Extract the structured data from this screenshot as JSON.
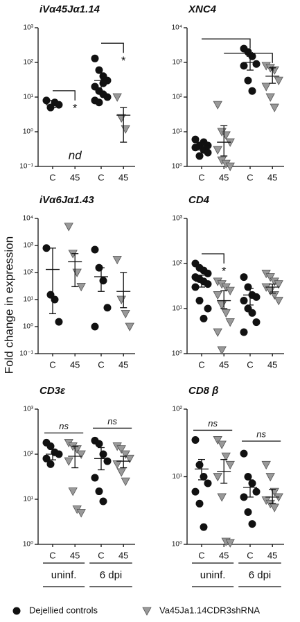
{
  "y_label": "Fold change in expression",
  "conditions": [
    "uninf.",
    "6 dpi"
  ],
  "legend": [
    {
      "name": "Dejellied controls",
      "color": "#111111",
      "marker": "circle"
    },
    {
      "name": "Va45Ja1.14CDR3shRNA",
      "color": "#999999",
      "marker": "triangle"
    }
  ],
  "chart_data": [
    {
      "type": "scatter",
      "title": "iVα45Jα1.14",
      "log": true,
      "categories": [
        "C",
        "45",
        "C",
        "45"
      ],
      "ylim": [
        0.1,
        1000
      ],
      "yticks": [
        {
          "value": 0.1,
          "label": "10⁻¹"
        },
        {
          "value": 1,
          "label": "10⁰"
        },
        {
          "value": 10,
          "label": "10¹"
        },
        {
          "value": 100,
          "label": "10²"
        },
        {
          "value": 1000,
          "label": "10³"
        }
      ],
      "groups": [
        [
          8,
          5,
          7,
          6
        ],
        [],
        [
          130,
          60,
          40,
          30,
          20,
          15,
          12,
          10,
          8,
          7,
          25
        ],
        [
          10,
          2.5,
          1.2
        ]
      ],
      "means": [
        6,
        null,
        30,
        3
      ],
      "error_low": [
        5,
        null,
        15,
        0.5
      ],
      "error_high": [
        8,
        null,
        50,
        5
      ],
      "annotations": [
        {
          "text": "*",
          "from": 0,
          "to": 1,
          "style": "drop"
        },
        {
          "text": "nd",
          "from": 1,
          "to": 1,
          "style": "text"
        },
        {
          "text": "*",
          "from": 2,
          "to": 3,
          "style": "drop"
        }
      ]
    },
    {
      "type": "scatter",
      "title": "XNC4",
      "log": true,
      "categories": [
        "C",
        "45",
        "C",
        "45"
      ],
      "ylim": [
        1,
        10000
      ],
      "yticks": [
        {
          "value": 1,
          "label": "10⁰"
        },
        {
          "value": 10,
          "label": "10¹"
        },
        {
          "value": 100,
          "label": "10²"
        },
        {
          "value": 1000,
          "label": "10³"
        },
        {
          "value": 10000,
          "label": "10⁴"
        }
      ],
      "groups": [
        [
          6,
          4,
          3,
          2.5,
          3.5,
          2,
          5,
          4
        ],
        [
          60,
          10,
          8,
          5,
          3,
          1.5,
          1.2,
          1
        ],
        [
          2500,
          2000,
          1500,
          900,
          800,
          300,
          150
        ],
        [
          800,
          700,
          600,
          300,
          200,
          100,
          50
        ]
      ],
      "means": [
        4,
        5,
        1000,
        400
      ],
      "error_low": [
        3,
        2,
        600,
        250
      ],
      "error_high": [
        5,
        15,
        1500,
        700
      ],
      "annotations": [
        {
          "text": "**",
          "from": 0,
          "to": 2,
          "style": "drop"
        },
        {
          "text": "*",
          "from": 1,
          "to": 3,
          "style": "drop"
        }
      ]
    },
    {
      "type": "scatter",
      "title": "iVα6Jα1.43",
      "log": true,
      "categories": [
        "C",
        "45",
        "C",
        "45"
      ],
      "ylim": [
        0.1,
        10000
      ],
      "yticks": [
        {
          "value": 0.1,
          "label": "10⁻¹"
        },
        {
          "value": 1,
          "label": "10⁰"
        },
        {
          "value": 10,
          "label": "10¹"
        },
        {
          "value": 100,
          "label": "10²"
        },
        {
          "value": 1000,
          "label": "10³"
        },
        {
          "value": 10000,
          "label": "10⁴"
        }
      ],
      "groups": [
        [
          800,
          15,
          10,
          1.5
        ],
        [
          5000,
          500,
          100,
          30
        ],
        [
          700,
          150,
          50,
          5,
          1
        ],
        [
          300,
          10,
          3,
          1
        ]
      ],
      "means": [
        130,
        250,
        70,
        20
      ],
      "error_low": [
        3,
        30,
        20,
        5
      ],
      "error_high": [
        800,
        500,
        150,
        100
      ],
      "annotations": []
    },
    {
      "type": "scatter",
      "title": "CD4",
      "log": true,
      "categories": [
        "C",
        "45",
        "C",
        "45"
      ],
      "ylim": [
        1,
        1000
      ],
      "yticks": [
        {
          "value": 1,
          "label": "10⁰"
        },
        {
          "value": 10,
          "label": "10¹"
        },
        {
          "value": 100,
          "label": "10²"
        },
        {
          "value": 1000,
          "label": "10³"
        }
      ],
      "groups": [
        [
          100,
          80,
          70,
          60,
          50,
          45,
          40,
          35,
          30,
          15,
          6,
          10
        ],
        [
          40,
          35,
          30,
          25,
          20,
          12,
          8,
          5,
          3,
          1.2
        ],
        [
          50,
          30,
          20,
          18,
          15,
          10,
          8,
          5,
          3
        ],
        [
          60,
          50,
          40,
          35,
          30,
          25,
          20,
          15
        ]
      ],
      "means": [
        40,
        15,
        20,
        30
      ],
      "error_low": [
        30,
        10,
        12,
        22
      ],
      "error_high": [
        55,
        25,
        28,
        35
      ],
      "annotations": [
        {
          "text": "*",
          "from": 0,
          "to": 1,
          "style": "drop"
        }
      ]
    },
    {
      "type": "scatter",
      "title": "CD3ε",
      "log": true,
      "categories": [
        "C",
        "45",
        "C",
        "45"
      ],
      "ylim": [
        1,
        1000
      ],
      "yticks": [
        {
          "value": 1,
          "label": "10⁰"
        },
        {
          "value": 10,
          "label": "10¹"
        },
        {
          "value": 100,
          "label": "10²"
        },
        {
          "value": 1000,
          "label": "10³"
        }
      ],
      "groups": [
        [
          180,
          150,
          110,
          100,
          80,
          60
        ],
        [
          180,
          150,
          130,
          100,
          70,
          15,
          6,
          5
        ],
        [
          200,
          170,
          100,
          70,
          30,
          15,
          9
        ],
        [
          150,
          130,
          100,
          80,
          60,
          40,
          25
        ]
      ],
      "means": [
        100,
        90,
        80,
        70
      ],
      "error_low": [
        75,
        50,
        45,
        50
      ],
      "error_high": [
        130,
        150,
        140,
        90
      ],
      "annotations": [
        {
          "text": "ns",
          "from": 0,
          "to": 1,
          "style": "line"
        },
        {
          "text": "ns",
          "from": 2,
          "to": 3,
          "style": "line"
        }
      ]
    },
    {
      "type": "scatter",
      "title": "CD8 β",
      "log": true,
      "categories": [
        "C",
        "45",
        "C",
        "45"
      ],
      "ylim": [
        1,
        100
      ],
      "yticks": [
        {
          "value": 1,
          "label": "10⁰"
        },
        {
          "value": 10,
          "label": "10¹"
        },
        {
          "value": 100,
          "label": "10²"
        }
      ],
      "groups": [
        [
          35,
          15,
          10,
          8,
          6,
          4,
          1.8
        ],
        [
          35,
          30,
          20,
          15,
          10,
          5,
          1.1,
          1.05
        ],
        [
          22,
          10,
          8,
          6,
          5,
          3,
          2
        ],
        [
          15,
          10,
          6,
          5,
          4.5,
          4,
          3.5
        ]
      ],
      "means": [
        13,
        12,
        7,
        5
      ],
      "error_low": [
        9,
        8,
        5,
        4
      ],
      "error_high": [
        18,
        18,
        9,
        6.5
      ],
      "annotations": [
        {
          "text": "ns",
          "from": 0,
          "to": 1,
          "style": "line"
        },
        {
          "text": "ns",
          "from": 2,
          "to": 3,
          "style": "line"
        }
      ]
    }
  ]
}
